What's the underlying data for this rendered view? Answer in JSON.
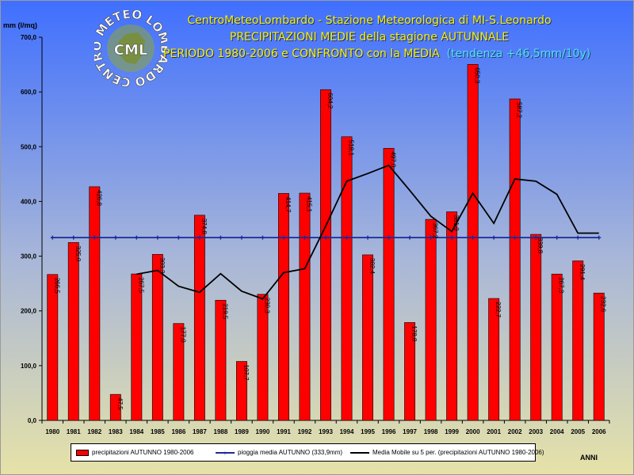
{
  "titles": {
    "line1": "CentroMeteoLombardo - Stazione Meteorologica di MI-S.Leonardo",
    "line2": "PRECIPITAZIONI MEDIE della stagione AUTUNNALE",
    "line3": "PERIODO 1980-2006 e CONFRONTO con la MEDIA",
    "tendenza": "(tendenza +46,5mm/10y)"
  },
  "logo": {
    "ring_text": "CENTRO METEO LOMBARDO",
    "center_text": "CML"
  },
  "colors": {
    "bar": "#ff0000",
    "mean_line": "#1a2a9a",
    "moving_avg": "#000000",
    "bg_top": "#3f6fff",
    "bg_bottom": "#e6e2a8"
  },
  "chart_data": {
    "type": "bar",
    "ylabel": "mm (l/mq)",
    "xlabel": "ANNI",
    "ylim": [
      0,
      700
    ],
    "y_ticks": [
      "0,0",
      "100,0",
      "200,0",
      "300,0",
      "400,0",
      "500,0",
      "600,0",
      "700,0"
    ],
    "categories": [
      "1980",
      "1981",
      "1982",
      "1983",
      "1984",
      "1985",
      "1986",
      "1987",
      "1988",
      "1989",
      "1990",
      "1991",
      "1992",
      "1993",
      "1994",
      "1995",
      "1996",
      "1997",
      "1998",
      "1999",
      "2000",
      "2001",
      "2002",
      "2003",
      "2004",
      "2005",
      "2006"
    ],
    "series": [
      {
        "name": "precipitazioni AUTUNNO 1980-2006",
        "type": "bar",
        "values": [
          266.5,
          325.0,
          426.8,
          47.5,
          267.5,
          303.3,
          177.0,
          374.8,
          219.5,
          107.7,
          230.3,
          414.7,
          415.1,
          604.2,
          518.1,
          302.4,
          497.0,
          178.8,
          367.2,
          381.0,
          650.3,
          222.7,
          587.2,
          339.8,
          267.3,
          291.4,
          232.6
        ],
        "labels": [
          "266,5",
          "325,0",
          "426,8",
          "47,5",
          "267,5",
          "303,3",
          "177,0",
          "374,8",
          "219,5",
          "107,7",
          "230,3",
          "414,7",
          "415,1",
          "604,2",
          "518,1",
          "302,4",
          "497,0",
          "178,8",
          "367,2",
          "381,0",
          "650,3",
          "222,7",
          "587,2",
          "339,8",
          "267,3",
          "291,4",
          "232,6"
        ]
      },
      {
        "name": "pioggia media AUTUNNO (333,9mm)",
        "type": "line",
        "values": [
          333.9,
          333.9,
          333.9,
          333.9,
          333.9,
          333.9,
          333.9,
          333.9,
          333.9,
          333.9,
          333.9,
          333.9,
          333.9,
          333.9,
          333.9,
          333.9,
          333.9,
          333.9,
          333.9,
          333.9,
          333.9,
          333.9,
          333.9,
          333.9,
          333.9,
          333.9,
          333.9
        ]
      },
      {
        "name": "Media Mobile su 5 per. (precipitazioni AUTUNNO 1980-2006)",
        "type": "line",
        "values": [
          null,
          null,
          null,
          null,
          267,
          274,
          245,
          234,
          268,
          236,
          222,
          270,
          277,
          355,
          437,
          451,
          466,
          420,
          373,
          345,
          415,
          360,
          441,
          437,
          413,
          342,
          342
        ]
      }
    ],
    "grid": false,
    "legend_position": "bottom"
  }
}
